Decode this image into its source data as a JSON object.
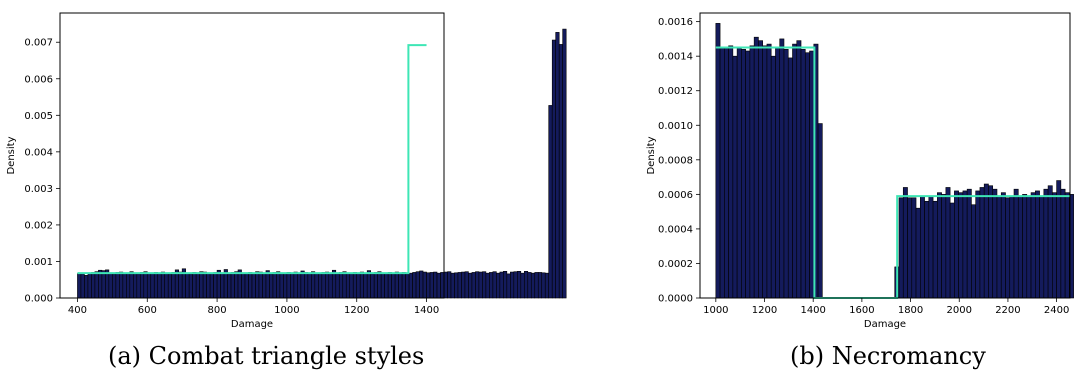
{
  "chart_data": [
    {
      "type": "bar",
      "caption": "(a) Combat triangle styles",
      "xlabel": "Damage",
      "ylabel": "Density",
      "xlim": [
        350,
        1450
      ],
      "ylim": [
        0,
        0.0078
      ],
      "xticks": [
        400,
        600,
        800,
        1000,
        1200,
        1400
      ],
      "yticks": [
        0.0,
        0.001,
        0.002,
        0.003,
        0.004,
        0.005,
        0.006,
        0.007
      ],
      "xtick_labels": [
        "400",
        "600",
        "800",
        "1000",
        "1200",
        "1400"
      ],
      "ytick_labels": [
        "0.000",
        "0.001",
        "0.002",
        "0.003",
        "0.004",
        "0.005",
        "0.006",
        "0.007"
      ],
      "bin_start": 400,
      "bin_width": 10,
      "bin_density": [
        0.00067,
        0.00066,
        0.00062,
        0.00068,
        0.0007,
        0.00072,
        0.00076,
        0.00075,
        0.00077,
        0.00069,
        0.00066,
        0.0007,
        0.00071,
        0.00068,
        0.00067,
        0.00072,
        0.00069,
        0.00066,
        0.0007,
        0.00072,
        0.00068,
        0.00067,
        0.0007,
        0.00069,
        0.00071,
        0.00068,
        0.00066,
        0.0007,
        0.00077,
        0.00071,
        0.0008,
        0.00068,
        0.00066,
        0.0007,
        0.00069,
        0.00072,
        0.00071,
        0.00068,
        0.00067,
        0.0007,
        0.00076,
        0.00069,
        0.00078,
        0.00066,
        0.0007,
        0.00072,
        0.00077,
        0.00068,
        0.00067,
        0.0007,
        0.00069,
        0.00072,
        0.00071,
        0.00068,
        0.00075,
        0.00066,
        0.0007,
        0.00072,
        0.00068,
        0.00067,
        0.0007,
        0.00069,
        0.00071,
        0.00068,
        0.00074,
        0.0007,
        0.00069,
        0.00072,
        0.00068,
        0.00067,
        0.0007,
        0.00071,
        0.00069,
        0.00076,
        0.00066,
        0.0007,
        0.00072,
        0.00068,
        0.00067,
        0.0007,
        0.00069,
        0.00071,
        0.00068,
        0.00075,
        0.00066,
        0.0007,
        0.00072,
        0.00068,
        0.00067,
        0.0007,
        0.00069,
        0.00071,
        0.00068,
        0.0007,
        0.00066,
        0.00068,
        0.0007,
        0.00072,
        0.00074,
        0.00071,
        0.00069,
        0.0007,
        0.00071,
        0.00068,
        0.0007,
        0.00071,
        0.00072,
        0.00068,
        0.00069,
        0.0007,
        0.00071,
        0.00072,
        0.00068,
        0.0007,
        0.00072,
        0.00071,
        0.00072,
        0.00068,
        0.0007,
        0.00072,
        0.00068,
        0.00071,
        0.00073,
        0.00066,
        0.00071,
        0.00072,
        0.00073,
        0.00068,
        0.00073,
        0.0007,
        0.00068,
        0.0007,
        0.0007,
        0.00069,
        0.00068,
        0.00527,
        0.00706,
        0.00727,
        0.00694,
        0.00736
      ],
      "fit_line": [
        [
          400,
          0.00068
        ],
        [
          1348,
          0.00068
        ],
        [
          1348,
          0.00692
        ],
        [
          1400,
          0.00692
        ]
      ],
      "bar_color": "#141b5c",
      "fit_color": "#3ee6b5"
    },
    {
      "type": "bar",
      "caption": "(b) Necromancy",
      "xlabel": "Damage",
      "ylabel": "Density",
      "xlim": [
        935,
        2455
      ],
      "ylim": [
        0,
        0.00165
      ],
      "xticks": [
        1000,
        1200,
        1400,
        1600,
        1800,
        2000,
        2200,
        2400
      ],
      "yticks": [
        0.0,
        0.0002,
        0.0004,
        0.0006,
        0.0008,
        0.001,
        0.0012,
        0.0014,
        0.0016
      ],
      "xtick_labels": [
        "1000",
        "1200",
        "1400",
        "1600",
        "1800",
        "2000",
        "2200",
        "2400"
      ],
      "ytick_labels": [
        "0.0000",
        "0.0002",
        "0.0004",
        "0.0006",
        "0.0008",
        "0.0010",
        "0.0012",
        "0.0014",
        "0.0016"
      ],
      "bin_start": 1000,
      "bin_width": 17.5,
      "bin_density": [
        0.00159,
        0.00145,
        0.00145,
        0.00146,
        0.0014,
        0.00145,
        0.00144,
        0.00143,
        0.00146,
        0.00151,
        0.00149,
        0.00146,
        0.00147,
        0.0014,
        0.00145,
        0.0015,
        0.00144,
        0.00139,
        0.00147,
        0.00149,
        0.00144,
        0.00142,
        0.00143,
        0.00147,
        0.00101,
        0,
        0,
        0,
        0,
        0,
        0,
        0,
        0,
        0,
        0,
        0,
        0,
        0,
        0,
        0,
        0,
        0,
        0.00018,
        0.00058,
        0.00064,
        0.00058,
        0.00058,
        0.00052,
        0.00059,
        0.00056,
        0.00059,
        0.00056,
        0.00061,
        0.0006,
        0.00064,
        0.00055,
        0.00062,
        0.00061,
        0.00062,
        0.00063,
        0.00054,
        0.00062,
        0.00064,
        0.00066,
        0.00065,
        0.00063,
        0.00059,
        0.00061,
        0.00058,
        0.00059,
        0.00063,
        0.00059,
        0.0006,
        0.00059,
        0.00061,
        0.00062,
        0.00059,
        0.00063,
        0.00065,
        0.00061,
        0.00068,
        0.00063,
        0.00061,
        0.0006
      ],
      "fit_line": [
        [
          1000,
          0.00145
        ],
        [
          1405,
          0.00145
        ],
        [
          1405,
          0.0
        ],
        [
          1745,
          0.0
        ],
        [
          1745,
          0.00059
        ],
        [
          2455,
          0.00059
        ]
      ],
      "bar_color": "#141b5c",
      "fit_color": "#3ee6b5"
    }
  ]
}
